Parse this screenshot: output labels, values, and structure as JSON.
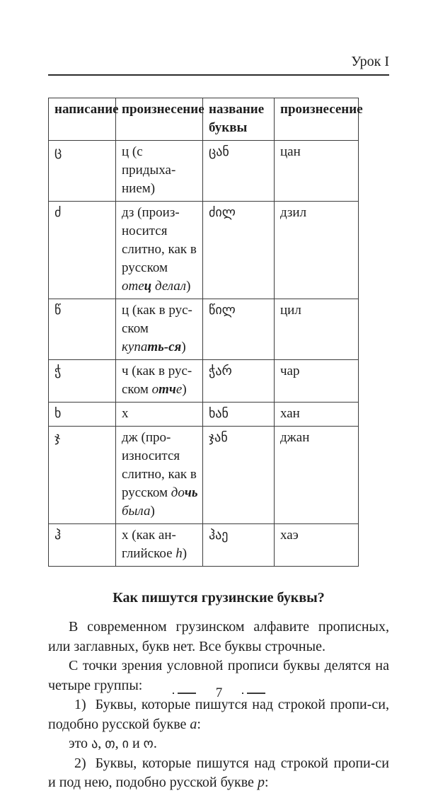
{
  "page": {
    "header": "Урок I",
    "footer_page_number": "7"
  },
  "table": {
    "headers": [
      "написание",
      "произнесение",
      "название буквы",
      "произнесение"
    ],
    "rows": [
      {
        "letter": "ც",
        "pronunciation": [
          {
            "t": "ц (с придыха-нием)"
          }
        ],
        "name": "ცან",
        "name_pronunciation": "цан"
      },
      {
        "letter": "ძ",
        "pronunciation": [
          {
            "t": "дз (произ-носится слитно, как в русском "
          },
          {
            "t": "оте",
            "s": "i"
          },
          {
            "t": "ц",
            "s": "bi"
          },
          {
            "t": " "
          },
          {
            "t": "делал",
            "s": "i"
          },
          {
            "t": ")"
          }
        ],
        "name": "ძილ",
        "name_pronunciation": "дзил"
      },
      {
        "letter": "წ",
        "pronunciation": [
          {
            "t": "ц (как в рус-ском "
          },
          {
            "t": "купа",
            "s": "i"
          },
          {
            "t": "ть-ся",
            "s": "bi"
          },
          {
            "t": ")"
          }
        ],
        "name": "წილ",
        "name_pronunciation": "цил"
      },
      {
        "letter": "ჭ",
        "pronunciation": [
          {
            "t": "ч (как в рус-ском "
          },
          {
            "t": "о",
            "s": "i"
          },
          {
            "t": "тч",
            "s": "bi"
          },
          {
            "t": "е",
            "s": "i"
          },
          {
            "t": ")"
          }
        ],
        "name": "ჭარ",
        "name_pronunciation": "чар"
      },
      {
        "letter": "ხ",
        "pronunciation": [
          {
            "t": "х"
          }
        ],
        "name": "ხან",
        "name_pronunciation": "хан"
      },
      {
        "letter": "ჯ",
        "pronunciation": [
          {
            "t": "дж (про-износится слитно, как в русском "
          },
          {
            "t": "до",
            "s": "i"
          },
          {
            "t": "чь",
            "s": "bi"
          },
          {
            "t": " "
          },
          {
            "t": "была",
            "s": "i"
          },
          {
            "t": ")"
          }
        ],
        "name": "ჯან",
        "name_pronunciation": "джан"
      },
      {
        "letter": "ჰ",
        "pronunciation": [
          {
            "t": "х (как ан-глийское "
          },
          {
            "t": "h",
            "s": "i"
          },
          {
            "t": ")"
          }
        ],
        "name": "ჰაე",
        "name_pronunciation": "хаэ"
      }
    ]
  },
  "section": {
    "heading": "Как пишутся грузинские буквы?",
    "paragraphs": [
      {
        "indent": true,
        "segments": [
          {
            "t": "В современном грузинском алфавите прописных, или заглавных, букв нет. Все буквы строчные."
          }
        ]
      },
      {
        "indent": true,
        "segments": [
          {
            "t": "С точки зрения условной прописи буквы делятся на четыре группы:"
          }
        ]
      },
      {
        "num": "1)",
        "segments": [
          {
            "t": "Буквы, которые пишутся над строкой пропи-си, подобно русской букве "
          },
          {
            "t": "а",
            "s": "i"
          },
          {
            "t": ":"
          }
        ]
      },
      {
        "indent": true,
        "segments": [
          {
            "t": "это "
          },
          {
            "t": "ა",
            "s": "g"
          },
          {
            "t": ", "
          },
          {
            "t": "თ",
            "s": "g"
          },
          {
            "t": ", "
          },
          {
            "t": "ი",
            "s": "g"
          },
          {
            "t": " и "
          },
          {
            "t": "ო",
            "s": "g"
          },
          {
            "t": "."
          }
        ]
      },
      {
        "num": "2)",
        "segments": [
          {
            "t": "Буквы, которые пишутся над строкой пропи-си и под нею, подобно русской букве "
          },
          {
            "t": "р",
            "s": "i"
          },
          {
            "t": ":"
          }
        ]
      }
    ]
  }
}
